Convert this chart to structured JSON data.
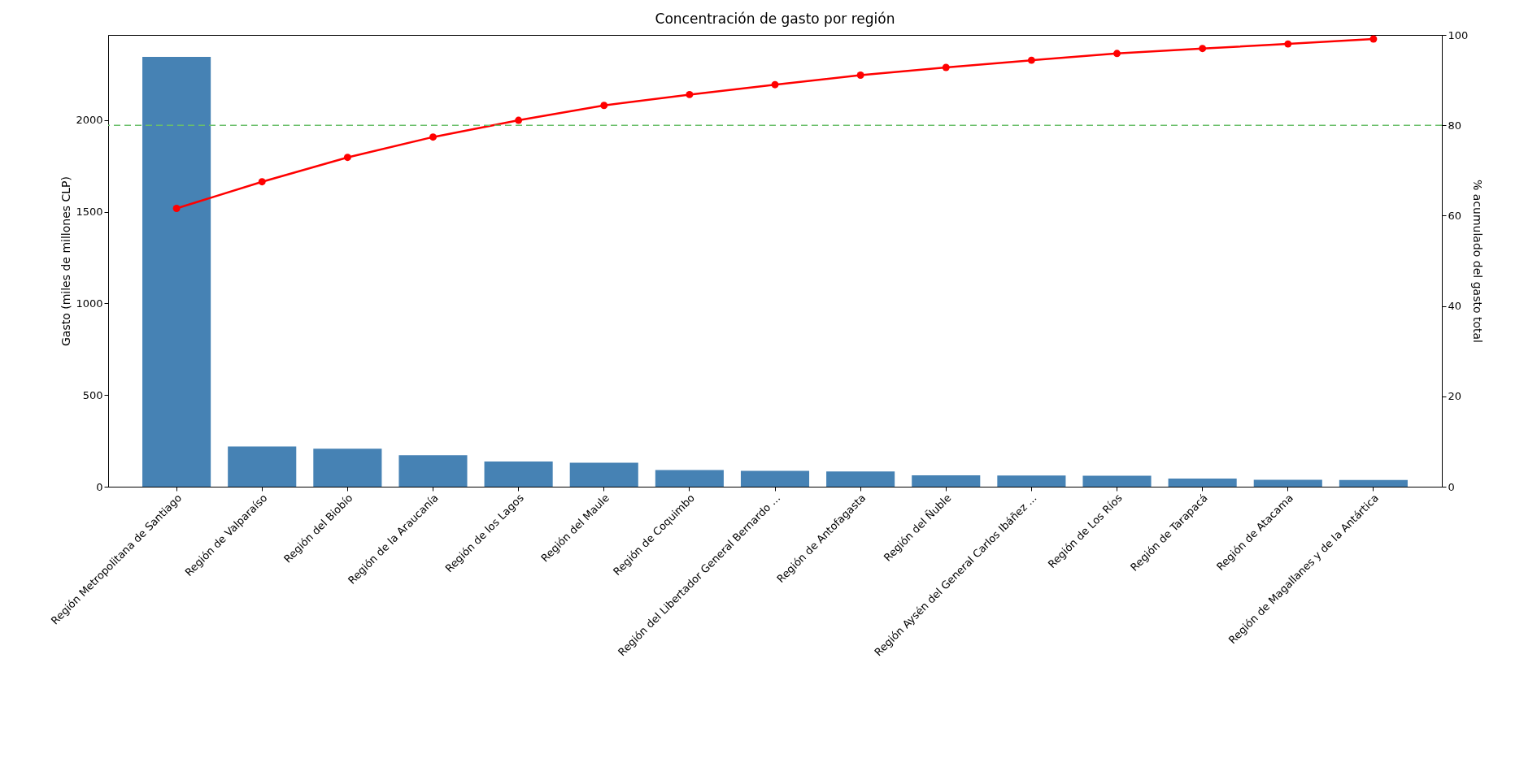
{
  "chart_data": {
    "type": "bar",
    "title": "Concentración de gasto por región",
    "ylabel": "Gasto (miles de millones CLP)",
    "y2label": "% acumulado del gasto total",
    "categories": [
      "Región Metropolitana de Santiago",
      "Región de Valparaíso",
      "Región del Biobío",
      "Región de la Araucanía",
      "Región de los Lagos",
      "Región del Maule",
      "Región de Coquimbo",
      "Región del Libertador General Bernardo ...",
      "Región de Antofagasta",
      "Región del Ñuble",
      "Región Aysén del General Carlos Ibáñez ...",
      "Región de Los Ríos",
      "Región de Tarapacá",
      "Región de Atacama",
      "Región de Magallanes y de la Antártica"
    ],
    "series": [
      {
        "color": "#4682b4",
        "values": [
          2345,
          220,
          207,
          172,
          137,
          131,
          91,
          86,
          83,
          62,
          61,
          60,
          44,
          38,
          37
        ]
      },
      {
        "type": "line",
        "axis": "y2",
        "color": "#ff0000",
        "marker": "circle",
        "values": [
          61.6,
          67.5,
          72.9,
          77.4,
          81.1,
          84.4,
          86.8,
          89.0,
          91.1,
          92.8,
          94.4,
          95.9,
          97.0,
          98.0,
          99.1
        ]
      }
    ],
    "ylim": [
      0,
      2465
    ],
    "yticks": [
      0,
      500,
      1000,
      1500,
      2000
    ],
    "y2lim": [
      0,
      100
    ],
    "y2ticks": [
      0,
      20,
      40,
      60,
      80,
      100
    ],
    "ref_lines": [
      {
        "axis": "y2",
        "value": 80,
        "color": "#6abf6a",
        "line_style": "dashed"
      }
    ],
    "grid": false
  }
}
